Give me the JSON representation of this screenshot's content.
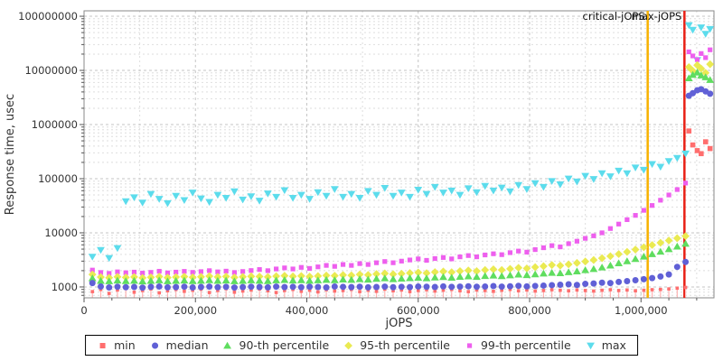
{
  "chart_data": {
    "type": "scatter",
    "title": "",
    "y_axis": {
      "label": "Response time, usec",
      "scale": "log",
      "min": 630,
      "max": 126000000,
      "ticks": [
        1000,
        10000,
        100000,
        1000000,
        10000000,
        100000000
      ],
      "tick_labels": [
        "1000",
        "10000",
        "100000",
        "1000000",
        "10000000",
        "100000000"
      ]
    },
    "x_axis": {
      "label": "jOPS",
      "scale": "linear",
      "min": 0,
      "max": 1131000,
      "ticks": [
        0,
        200000,
        400000,
        600000,
        800000,
        1000000
      ],
      "tick_labels": [
        "0",
        "200,000",
        "400,000",
        "600,000",
        "800,000",
        "1,000,000"
      ],
      "minor_tick_step": 50000,
      "minor_grid_step": 100000
    },
    "annotations": [
      {
        "label": "critical-jOPS",
        "x": 1012000,
        "color": "#f7b100"
      },
      {
        "label": "max-jOPS",
        "x": 1078000,
        "color": "#e82015"
      }
    ],
    "grid": {
      "major_color": "#c6c6c6",
      "minor_color": "#dedede",
      "border_color": "#8a8a8a"
    },
    "legend_position": "bottom",
    "x": [
      15000,
      30000,
      45000,
      60000,
      75000,
      90000,
      105000,
      120000,
      135000,
      150000,
      165000,
      180000,
      195000,
      210000,
      225000,
      240000,
      255000,
      270000,
      285000,
      300000,
      315000,
      330000,
      345000,
      360000,
      375000,
      390000,
      405000,
      420000,
      435000,
      450000,
      465000,
      480000,
      495000,
      510000,
      525000,
      540000,
      555000,
      570000,
      585000,
      600000,
      615000,
      630000,
      645000,
      660000,
      675000,
      690000,
      705000,
      720000,
      735000,
      750000,
      765000,
      780000,
      795000,
      810000,
      825000,
      840000,
      855000,
      870000,
      885000,
      900000,
      915000,
      930000,
      945000,
      960000,
      975000,
      990000,
      1005000,
      1020000,
      1035000,
      1050000,
      1065000,
      1080000,
      1086000,
      1093000,
      1101000,
      1108000,
      1116000,
      1124000
    ],
    "series": [
      {
        "key": "min",
        "name": "min",
        "marker": "square",
        "color": "#ff6e6e",
        "stem_color": "#ffb3b3",
        "values": [
          820,
          900,
          760,
          880,
          940,
          800,
          860,
          920,
          780,
          850,
          900,
          830,
          870,
          910,
          790,
          860,
          930,
          800,
          840,
          880,
          920,
          850,
          790,
          860,
          900,
          830,
          870,
          810,
          890,
          840,
          860,
          900,
          820,
          870,
          830,
          910,
          850,
          880,
          820,
          860,
          890,
          840,
          870,
          900,
          850,
          820,
          880,
          860,
          830,
          870,
          900,
          850,
          880,
          840,
          860,
          890,
          870,
          850,
          880,
          860,
          840,
          870,
          890,
          860,
          880,
          850,
          870,
          890,
          900,
          920,
          950,
          980,
          760000,
          420000,
          330000,
          290000,
          480000,
          360000
        ]
      },
      {
        "key": "median",
        "name": "median",
        "marker": "circle",
        "color": "#6060d6",
        "values": [
          1180,
          1020,
          980,
          1010,
          990,
          1000,
          970,
          1005,
          1020,
          985,
          995,
          1010,
          980,
          1000,
          1015,
          990,
          1005,
          975,
          995,
          1010,
          1000,
          985,
          1015,
          995,
          1005,
          990,
          1010,
          1000,
          980,
          1020,
          1005,
          995,
          1010,
          985,
          1000,
          1015,
          990,
          1005,
          995,
          1020,
          1010,
          1000,
          1025,
          1005,
          1015,
          1030,
          1010,
          1020,
          1040,
          1015,
          1030,
          1050,
          1025,
          1045,
          1060,
          1080,
          1100,
          1120,
          1090,
          1140,
          1160,
          1200,
          1180,
          1240,
          1280,
          1330,
          1390,
          1460,
          1560,
          1700,
          2350,
          2900,
          3400000,
          3800000,
          4300000,
          4500000,
          4100000,
          3700000
        ]
      },
      {
        "key": "p90",
        "name": "90-th percentile",
        "marker": "triangle-up",
        "color": "#5fdd5f",
        "values": [
          1450,
          1300,
          1280,
          1320,
          1290,
          1310,
          1270,
          1300,
          1330,
          1280,
          1300,
          1320,
          1290,
          1310,
          1340,
          1300,
          1320,
          1280,
          1300,
          1330,
          1310,
          1290,
          1330,
          1350,
          1320,
          1340,
          1310,
          1330,
          1360,
          1340,
          1380,
          1360,
          1400,
          1370,
          1420,
          1450,
          1400,
          1430,
          1460,
          1480,
          1450,
          1500,
          1530,
          1490,
          1550,
          1580,
          1540,
          1600,
          1630,
          1590,
          1650,
          1700,
          1660,
          1720,
          1780,
          1830,
          1800,
          1880,
          1950,
          2050,
          2150,
          2300,
          2500,
          2750,
          3000,
          3300,
          3650,
          4050,
          4500,
          5000,
          5600,
          6300,
          7200000,
          8300000,
          9200000,
          8100000,
          7500000,
          6700000
        ]
      },
      {
        "key": "p95",
        "name": "95-th percentile",
        "marker": "diamond",
        "color": "#eaea52",
        "values": [
          1700,
          1520,
          1480,
          1540,
          1500,
          1530,
          1470,
          1510,
          1550,
          1490,
          1520,
          1550,
          1510,
          1540,
          1580,
          1530,
          1560,
          1500,
          1540,
          1570,
          1560,
          1530,
          1580,
          1610,
          1570,
          1600,
          1560,
          1590,
          1630,
          1610,
          1660,
          1640,
          1700,
          1670,
          1730,
          1780,
          1720,
          1760,
          1810,
          1850,
          1800,
          1880,
          1930,
          1870,
          1960,
          2020,
          1960,
          2060,
          2120,
          2060,
          2160,
          2260,
          2200,
          2320,
          2420,
          2540,
          2480,
          2620,
          2780,
          2960,
          3150,
          3400,
          3700,
          4050,
          4450,
          4900,
          5400,
          5950,
          6550,
          7200,
          7950,
          8700,
          11500000,
          9800000,
          12500000,
          10800000,
          9000000,
          13000000
        ]
      },
      {
        "key": "p99",
        "name": "99-th percentile",
        "marker": "square-small",
        "color": "#ee5fee",
        "values": [
          2050,
          1850,
          1780,
          1900,
          1830,
          1880,
          1800,
          1860,
          1950,
          1820,
          1880,
          1940,
          1860,
          1920,
          2000,
          1900,
          1960,
          1850,
          1930,
          2010,
          2100,
          2000,
          2150,
          2250,
          2150,
          2300,
          2200,
          2350,
          2500,
          2400,
          2600,
          2500,
          2700,
          2600,
          2800,
          2950,
          2800,
          3000,
          3150,
          3300,
          3100,
          3350,
          3500,
          3300,
          3600,
          3800,
          3600,
          3900,
          4100,
          3950,
          4300,
          4600,
          4400,
          4900,
          5300,
          5800,
          5500,
          6300,
          7000,
          7900,
          8800,
          10000,
          12000,
          14500,
          17500,
          21000,
          26000,
          32000,
          40000,
          50000,
          63000,
          83000,
          22000000,
          18500000,
          15800000,
          20500000,
          17200000,
          24000000
        ]
      },
      {
        "key": "max",
        "name": "max",
        "marker": "triangle-down",
        "color": "#5cdcec",
        "values": [
          3600,
          4800,
          3400,
          5200,
          38000,
          45000,
          36000,
          52000,
          42000,
          35000,
          48000,
          40000,
          55000,
          43000,
          37000,
          50000,
          44000,
          58000,
          41000,
          47000,
          39000,
          53000,
          46000,
          61000,
          44000,
          50000,
          42000,
          56000,
          48000,
          64000,
          46000,
          52000,
          44000,
          59000,
          50000,
          67000,
          48000,
          55000,
          46000,
          62000,
          52000,
          70000,
          55000,
          60000,
          50000,
          66000,
          56000,
          73000,
          60000,
          68000,
          58000,
          76000,
          64000,
          82000,
          70000,
          90000,
          78000,
          100000,
          88000,
          112000,
          98000,
          125000,
          110000,
          140000,
          125000,
          160000,
          145000,
          185000,
          165000,
          210000,
          240000,
          290000,
          68000000,
          56000000,
          15500000,
          62000000,
          47000000,
          58000000
        ]
      }
    ]
  }
}
